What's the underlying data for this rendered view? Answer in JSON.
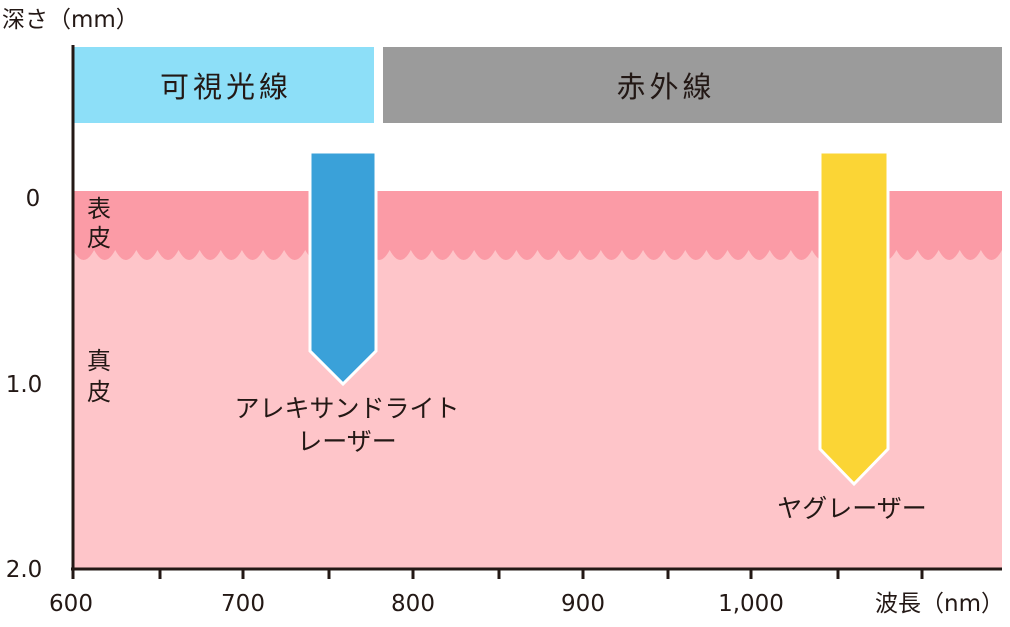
{
  "axes": {
    "y_label": "深さ（mm）",
    "x_label": "波長（nm）",
    "y_ticks": [
      "0",
      "1.0",
      "2.0"
    ],
    "x_ticks": [
      "600",
      "700",
      "800",
      "900",
      "1,000"
    ]
  },
  "spectrum": {
    "visible": "可視光線",
    "infrared": "赤外線"
  },
  "layers": {
    "epidermis": [
      "表",
      "皮"
    ],
    "dermis": [
      "真",
      "皮"
    ]
  },
  "lasers": {
    "alexandrite": [
      "アレキサンドライト",
      "レーザー"
    ],
    "yag": "ヤグレーザー"
  },
  "colors": {
    "visible_band": "#8ddff8",
    "infrared_band": "#9b9b9b",
    "epidermis": "#fb9ba6",
    "dermis": "#fec5c9",
    "alexandrite_arrow": "#3aa1d9",
    "yag_arrow": "#fbd535"
  },
  "chart_data": {
    "type": "diagram",
    "x_range_nm": [
      600,
      1150
    ],
    "y_range_mm": [
      0,
      2.0
    ],
    "bands": [
      {
        "label": "可視光線",
        "from_nm": 600,
        "to_nm": 780
      },
      {
        "label": "赤外線",
        "from_nm": 780,
        "to_nm": 1150
      }
    ],
    "lasers": [
      {
        "label": "アレキサンドライトレーザー",
        "wavelength_nm": 755,
        "depth_mm": 1.0
      },
      {
        "label": "ヤグレーザー",
        "wavelength_nm": 1064,
        "depth_mm": 1.55
      }
    ]
  }
}
